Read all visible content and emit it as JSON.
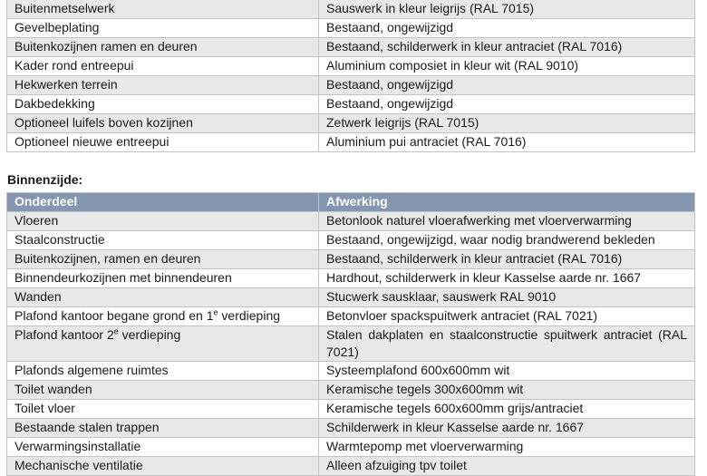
{
  "buitenzijde": {
    "rows": [
      {
        "onderdeel": "Buitenmetselwerk",
        "afwerking": "Sauswerk in kleur leigrijs (RAL 7015)"
      },
      {
        "onderdeel": "Gevelbeplating",
        "afwerking": "Bestaand, ongewijzigd"
      },
      {
        "onderdeel": "Buitenkozijnen ramen en deuren",
        "afwerking": "Bestaand, schilderwerk in kleur antraciet (RAL 7016)"
      },
      {
        "onderdeel": "Kader rond entreepui",
        "afwerking": "Aluminium composiet in kleur wit (RAL 9010)"
      },
      {
        "onderdeel": "Hekwerken terrein",
        "afwerking": "Bestaand, ongewijzigd"
      },
      {
        "onderdeel": "Dakbedekking",
        "afwerking": "Bestaand, ongewijzigd"
      },
      {
        "onderdeel": "Optioneel luifels boven kozijnen",
        "afwerking": "Zetwerk leigrijs (RAL 7015)"
      },
      {
        "onderdeel": "Optioneel nieuwe entreepui",
        "afwerking": "Aluminium pui antraciet (RAL 7016)"
      }
    ]
  },
  "binnenzijde": {
    "heading": "Binnenzijde:",
    "header": {
      "onderdeel": "Onderdeel",
      "afwerking": "Afwerking"
    },
    "rows": [
      {
        "onderdeel": "Vloeren",
        "afwerking": "Betonlook naturel vloerafwerking met vloerverwarming"
      },
      {
        "onderdeel": "Staalconstructie",
        "afwerking": "Bestaand, ongewijzigd, waar nodig brandwerend bekleden"
      },
      {
        "onderdeel": "Buitenkozijnen, ramen en deuren",
        "afwerking": "Bestaand, schilderwerk in kleur antraciet (RAL 7016)"
      },
      {
        "onderdeel": "Binnendeurkozijnen met binnendeuren",
        "afwerking": "Hardhout, schilderwerk in kleur Kasselse aarde nr. 1667"
      },
      {
        "onderdeel": "Wanden",
        "afwerking": "Stucwerk sausklaar, sauswerk RAL 9010"
      },
      {
        "onderdeel_pre": "Plafond kantoor begane grond en 1",
        "onderdeel_sup": "e",
        "onderdeel_post": " verdieping",
        "afwerking": "Betonvloer spackspuitwerk antraciet (RAL 7021)"
      },
      {
        "onderdeel_pre": "Plafond kantoor 2",
        "onderdeel_sup": "e",
        "onderdeel_post": " verdieping",
        "afwerking": "Stalen dakplaten en staalconstructie spuitwerk antraciet (RAL 7021)"
      },
      {
        "onderdeel": "Plafonds algemene ruimtes",
        "afwerking": "Systeemplafond 600x600mm wit"
      },
      {
        "onderdeel": "Toilet wanden",
        "afwerking": "Keramische tegels 300x600mm wit"
      },
      {
        "onderdeel": "Toilet vloer",
        "afwerking": "Keramische tegels 600x600mm grijs/antraciet"
      },
      {
        "onderdeel": "Bestaande stalen trappen",
        "afwerking": "Schilderwerk in kleur Kasselse aarde nr. 1667"
      },
      {
        "onderdeel": "Verwarmingsinstallatie",
        "afwerking": "Warmtepomp met vloerverwarming"
      },
      {
        "onderdeel": "Mechanische ventilatie",
        "afwerking": "Alleen afzuiging tpv toilet"
      }
    ]
  },
  "colors": {
    "header_bg": "#8496b0",
    "row_shade": "#e8e8e8",
    "border": "#c4c4c4"
  }
}
